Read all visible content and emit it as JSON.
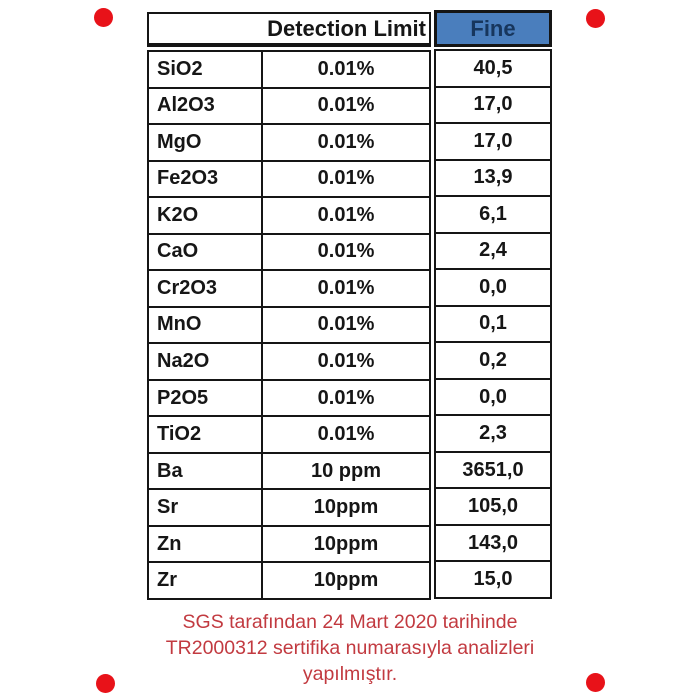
{
  "table": {
    "header": {
      "detection_limit": "Detection Limit",
      "fine": "Fine"
    },
    "rows": [
      {
        "label": "SiO2",
        "limit": "0.01%",
        "fine": "40,5"
      },
      {
        "label": "Al2O3",
        "limit": "0.01%",
        "fine": "17,0"
      },
      {
        "label": "MgO",
        "limit": "0.01%",
        "fine": "17,0"
      },
      {
        "label": "Fe2O3",
        "limit": "0.01%",
        "fine": "13,9"
      },
      {
        "label": "K2O",
        "limit": "0.01%",
        "fine": "6,1"
      },
      {
        "label": "CaO",
        "limit": "0.01%",
        "fine": "2,4"
      },
      {
        "label": "Cr2O3",
        "limit": "0.01%",
        "fine": "0,0"
      },
      {
        "label": "MnO",
        "limit": "0.01%",
        "fine": "0,1"
      },
      {
        "label": "Na2O",
        "limit": "0.01%",
        "fine": "0,2"
      },
      {
        "label": "P2O5",
        "limit": "0.01%",
        "fine": "0,0"
      },
      {
        "label": "TiO2",
        "limit": "0.01%",
        "fine": "2,3"
      },
      {
        "label": "Ba",
        "limit": "10 ppm",
        "fine": "3651,0"
      },
      {
        "label": "Sr",
        "limit": "10ppm",
        "fine": "105,0"
      },
      {
        "label": "Zn",
        "limit": "10ppm",
        "fine": "143,0"
      },
      {
        "label": "Zr",
        "limit": "10ppm",
        "fine": "15,0"
      }
    ]
  },
  "caption": {
    "line1": "SGS tarafından 24 Mart 2020 tarihinde",
    "line2": "TR2000312 sertifika numarasıyla analizleri",
    "line3": "yapılmıştır."
  },
  "colors": {
    "fine_header_bg": "#4a7ebd",
    "fine_header_text": "#17365d",
    "table_border": "#151515",
    "caption_red": "#c23a40",
    "dot_red": "#e81219"
  }
}
